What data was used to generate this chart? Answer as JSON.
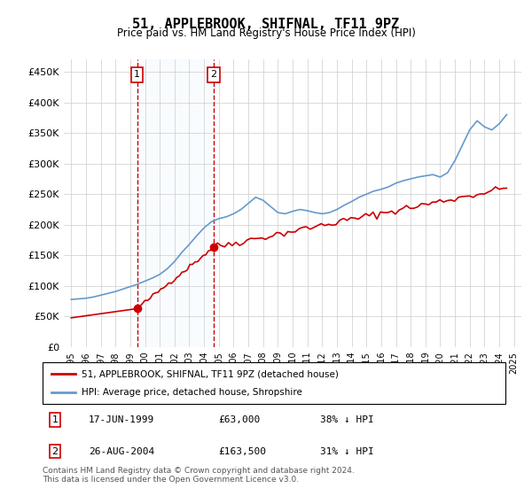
{
  "title": "51, APPLEBROOK, SHIFNAL, TF11 9PZ",
  "subtitle": "Price paid vs. HM Land Registry's House Price Index (HPI)",
  "footer": "Contains HM Land Registry data © Crown copyright and database right 2024.\nThis data is licensed under the Open Government Licence v3.0.",
  "legend_line1": "51, APPLEBROOK, SHIFNAL, TF11 9PZ (detached house)",
  "legend_line2": "HPI: Average price, detached house, Shropshire",
  "sale1_label": "1",
  "sale1_date": "17-JUN-1999",
  "sale1_price": "£63,000",
  "sale1_hpi": "38% ↓ HPI",
  "sale1_year": 1999.46,
  "sale1_value": 63000,
  "sale2_label": "2",
  "sale2_date": "26-AUG-2004",
  "sale2_price": "£163,500",
  "sale2_hpi": "31% ↓ HPI",
  "sale2_year": 2004.65,
  "sale2_value": 163500,
  "red_color": "#cc0000",
  "blue_color": "#6699cc",
  "marker_color": "#cc0000",
  "grid_color": "#cccccc",
  "dashed_color": "#cc0000",
  "shade_color": "#ddeeff",
  "box_edge_color": "#cc0000",
  "ylim": [
    0,
    470000
  ],
  "yticks": [
    0,
    50000,
    100000,
    150000,
    200000,
    250000,
    300000,
    350000,
    400000,
    450000
  ],
  "ytick_labels": [
    "£0",
    "£50K",
    "£100K",
    "£150K",
    "£200K",
    "£250K",
    "£300K",
    "£350K",
    "£400K",
    "£450K"
  ],
  "xlim_start": 1994.5,
  "xlim_end": 2025.5
}
